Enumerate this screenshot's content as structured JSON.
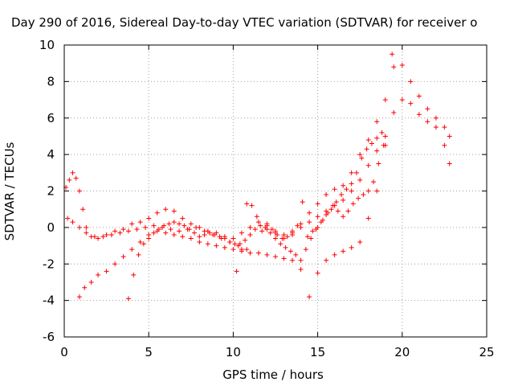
{
  "chart_data": {
    "type": "scatter",
    "title": "Day 290 of 2016, Sidereal Day-to-day VTEC variation (SDTVAR) for receiver o",
    "xlabel": "GPS time / hours",
    "ylabel": "SDTVAR / TECUs",
    "xlim": [
      0,
      25
    ],
    "ylim": [
      -6,
      10
    ],
    "xticks": [
      0,
      5,
      10,
      15,
      20,
      25
    ],
    "yticks": [
      -6,
      -4,
      -2,
      0,
      2,
      4,
      6,
      8,
      10
    ],
    "grid": true,
    "marker": "+",
    "colors": {
      "series": "#ff0000",
      "grid": "#a0a0a0",
      "axes": "#000000"
    },
    "series": [
      {
        "x": [
          0.1,
          0.3,
          0.5,
          0.7,
          0.9,
          1.1,
          1.3,
          1.6,
          2.0,
          2.5,
          3.0,
          3.5,
          4.0,
          4.5,
          5.0,
          5.5,
          6.0,
          6.5,
          7.0,
          7.5,
          8.0,
          8.5,
          9.0,
          9.5,
          10.0,
          10.5,
          11.0,
          11.5,
          12.0,
          12.5,
          13.0,
          13.5,
          14.0,
          14.5,
          15.0,
          15.5,
          16.0,
          16.5,
          17.0,
          17.5,
          18.0,
          18.5,
          19.0,
          19.5,
          20.0,
          20.5,
          21.0,
          21.5,
          22.0,
          22.5,
          22.8
        ],
        "y": [
          2.2,
          2.6,
          3.0,
          2.7,
          2.0,
          1.0,
          0.0,
          -0.5,
          -0.6,
          -0.4,
          -0.2,
          -0.1,
          0.2,
          0.3,
          0.5,
          0.8,
          1.0,
          0.9,
          0.5,
          0.2,
          0.0,
          -0.2,
          -0.3,
          -0.5,
          -0.6,
          -0.3,
          0.0,
          0.3,
          0.2,
          -0.2,
          -0.6,
          -0.4,
          0.2,
          0.8,
          1.3,
          1.8,
          2.1,
          2.3,
          3.0,
          4.0,
          4.8,
          5.8,
          7.0,
          8.8,
          8.9,
          8.0,
          7.2,
          6.5,
          6.0,
          5.5,
          5.0
        ]
      },
      {
        "x": [
          0.2,
          0.5,
          0.9,
          1.3,
          1.8,
          2.3,
          2.8,
          3.3,
          3.8,
          4.3,
          4.8,
          5.3,
          5.8,
          6.3,
          6.8,
          7.3,
          7.8,
          8.3,
          8.8,
          9.3,
          9.8,
          10.3,
          10.8,
          12.0,
          12.5,
          13.0,
          13.5,
          14.0,
          14.5,
          15.0,
          15.5,
          16.0,
          16.5,
          17.0,
          17.5,
          18.0,
          18.5,
          19.0,
          19.5,
          20.0,
          20.5,
          21.0,
          21.5,
          22.0,
          22.5,
          22.8
        ],
        "y": [
          0.5,
          0.3,
          0.0,
          -0.3,
          -0.5,
          -0.5,
          -0.4,
          -0.3,
          -0.2,
          -0.1,
          0.0,
          0.1,
          0.0,
          -0.1,
          -0.2,
          -0.1,
          0.0,
          -0.2,
          -0.4,
          -0.6,
          -0.8,
          -1.0,
          -1.2,
          -0.1,
          -0.3,
          -0.4,
          -0.3,
          0.0,
          0.3,
          0.6,
          0.9,
          1.2,
          1.5,
          2.0,
          2.6,
          3.4,
          4.2,
          5.0,
          6.3,
          7.0,
          6.8,
          6.2,
          5.8,
          5.5,
          4.5,
          3.5
        ]
      },
      {
        "x": [
          0.9,
          1.2,
          1.6,
          2.0,
          2.5,
          3.0,
          3.5,
          4.0,
          4.5,
          5.0,
          5.5,
          6.0,
          6.5,
          7.0,
          7.5,
          8.0,
          8.5,
          9.0,
          9.5,
          10.0,
          10.5,
          11.0,
          11.5,
          12.0,
          12.5,
          13.0,
          13.5,
          14.0,
          14.5,
          15.0,
          15.5,
          16.0,
          16.5,
          17.0,
          17.5,
          18.0,
          18.5,
          19.0,
          19.4
        ],
        "y": [
          -3.8,
          -3.3,
          -3.0,
          -2.6,
          -2.4,
          -2.0,
          -1.6,
          -1.2,
          -0.8,
          -0.4,
          -0.2,
          -0.3,
          -0.4,
          -0.5,
          -0.6,
          -0.8,
          -0.9,
          -1.0,
          -1.1,
          -1.2,
          -1.3,
          -1.4,
          -1.4,
          -1.5,
          -1.6,
          -1.7,
          -1.8,
          -2.3,
          -3.8,
          -2.5,
          -1.8,
          -1.5,
          -1.3,
          -1.1,
          -0.8,
          0.5,
          2.0,
          4.5,
          9.5
        ]
      },
      {
        "x": [
          3.8,
          4.1,
          4.4,
          4.7,
          5.0,
          5.3,
          5.6,
          5.9,
          6.2,
          6.5,
          6.8,
          7.1,
          7.4,
          7.7,
          8.0,
          8.3,
          8.6,
          8.9,
          9.2,
          9.5,
          9.8,
          10.1,
          10.4,
          10.7,
          11.0,
          11.3,
          11.6,
          11.9,
          12.2,
          12.5,
          12.8,
          13.1,
          13.4,
          13.7,
          14.0,
          14.3,
          14.6,
          14.9,
          15.2,
          15.5,
          15.8,
          16.1,
          16.4,
          16.7,
          17.0,
          17.3,
          17.6,
          17.9,
          18.2,
          18.5,
          18.8
        ],
        "y": [
          -3.9,
          -2.6,
          -1.5,
          -0.9,
          -0.6,
          -0.3,
          -0.1,
          0.1,
          0.2,
          0.3,
          0.2,
          0.1,
          -0.1,
          -0.3,
          -0.5,
          -0.4,
          -0.3,
          -0.4,
          -0.5,
          -0.6,
          -0.8,
          -0.9,
          -0.9,
          -0.7,
          -0.4,
          -0.1,
          0.1,
          0.0,
          -0.3,
          -0.6,
          -0.9,
          -1.1,
          -1.3,
          -1.5,
          -1.8,
          -1.2,
          -0.6,
          -0.1,
          0.3,
          0.7,
          1.0,
          1.4,
          1.8,
          2.1,
          2.4,
          3.0,
          3.8,
          4.3,
          4.6,
          4.9,
          5.2
        ]
      },
      {
        "x": [
          10.2,
          10.5,
          10.8,
          11.1,
          11.4,
          11.7,
          12.0,
          12.3,
          12.6,
          12.9,
          13.2,
          13.5,
          13.8,
          14.1,
          14.4,
          14.7,
          15.0,
          15.3,
          15.6,
          15.9,
          16.2,
          16.5,
          16.8,
          17.1,
          17.4,
          17.7,
          18.0,
          18.3,
          18.6,
          18.9
        ],
        "y": [
          -2.4,
          -1.2,
          1.3,
          1.2,
          0.6,
          -0.2,
          0.1,
          -0.1,
          -0.4,
          -0.6,
          -0.5,
          -0.2,
          0.1,
          1.4,
          -0.5,
          -0.2,
          0.0,
          0.4,
          0.8,
          1.2,
          0.9,
          0.6,
          0.9,
          1.3,
          1.6,
          1.8,
          2.0,
          2.5,
          3.5,
          4.5
        ]
      }
    ]
  }
}
